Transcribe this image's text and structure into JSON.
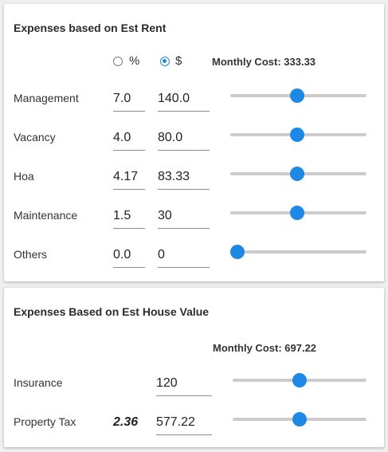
{
  "rent_expenses": {
    "title": "Expenses based on Est Rent",
    "mode_options": [
      {
        "label": "%",
        "selected": false
      },
      {
        "label": "$",
        "selected": true
      }
    ],
    "monthly_cost_label": "Monthly Cost: 333.33",
    "rows": [
      {
        "label": "Management",
        "percent": "7.0",
        "amount": "140.0",
        "slider_fraction": 0.49
      },
      {
        "label": "Vacancy",
        "percent": "4.0",
        "amount": "80.0",
        "slider_fraction": 0.49
      },
      {
        "label": "Hoa",
        "percent": "4.17",
        "amount": "83.33",
        "slider_fraction": 0.49
      },
      {
        "label": "Maintenance",
        "percent": "1.5",
        "amount": "30",
        "slider_fraction": 0.49
      },
      {
        "label": "Others",
        "percent": "0.0",
        "amount": "0",
        "slider_fraction": 0.0
      }
    ]
  },
  "house_value_expenses": {
    "title": "Expenses Based on Est House Value",
    "monthly_cost_label": "Monthly Cost: 697.22",
    "rows": [
      {
        "label": "Insurance",
        "percent": "",
        "amount": "120",
        "slider_fraction": 0.5
      },
      {
        "label": "Property Tax",
        "percent": "2.36",
        "amount": "577.22",
        "slider_fraction": 0.5
      }
    ]
  },
  "colors": {
    "accent": "#1e88e5",
    "track": "#cccccc"
  }
}
